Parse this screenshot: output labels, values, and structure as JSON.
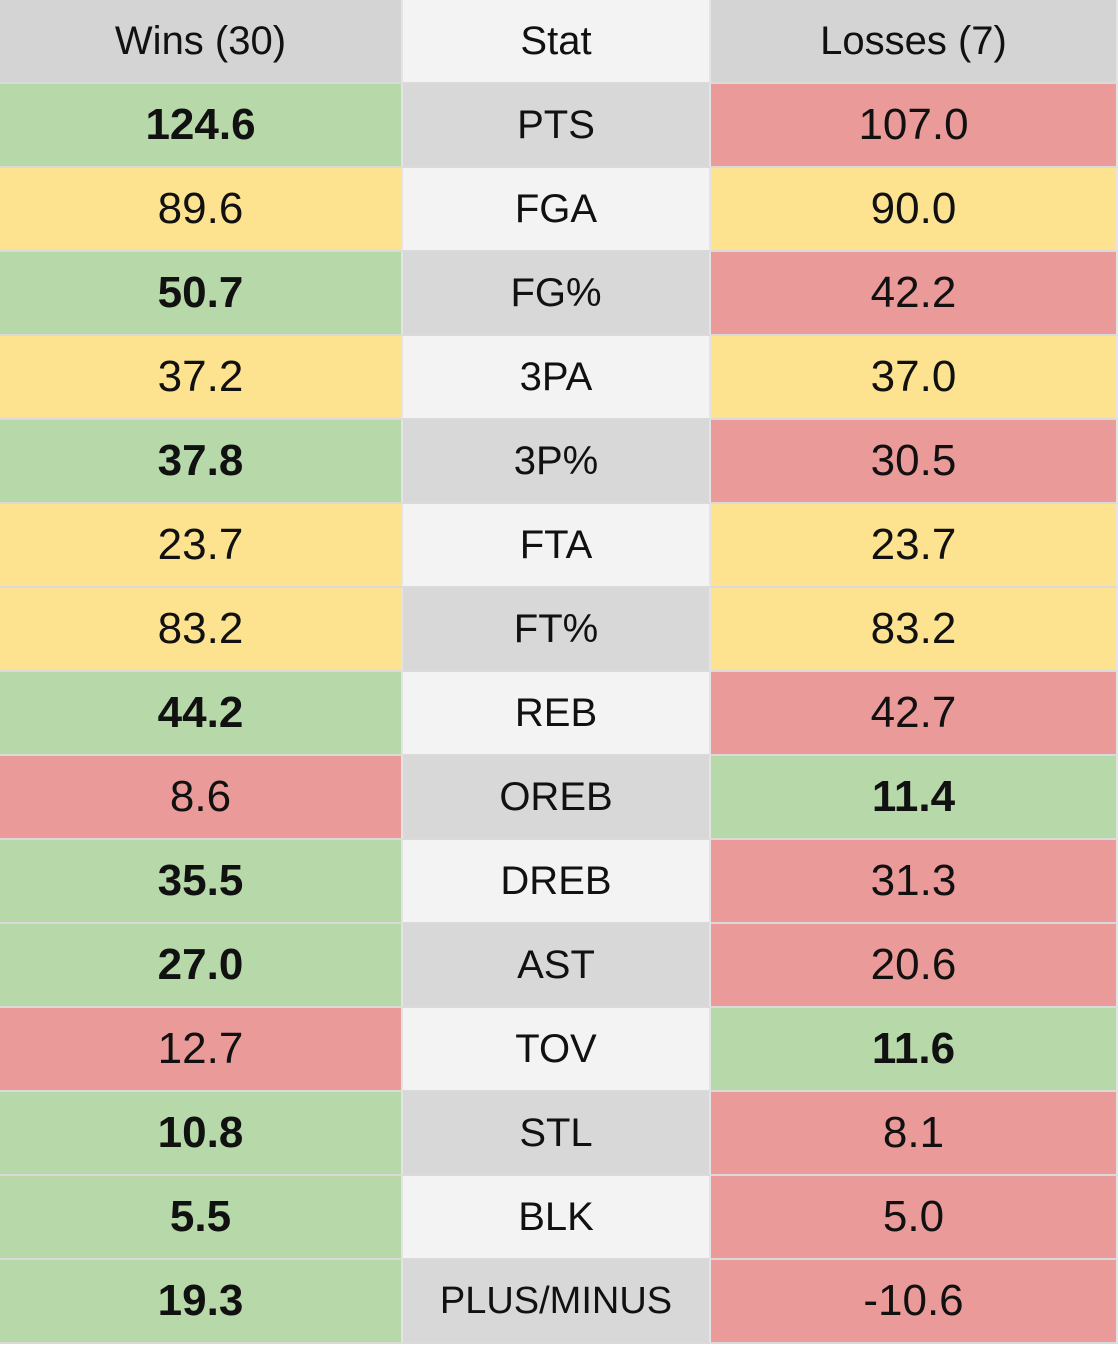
{
  "chart_data": {
    "type": "table",
    "columns": [
      "Wins (30)",
      "Stat",
      "Losses (7)"
    ],
    "colors": {
      "better": "#b7d8a8",
      "worse": "#ea9a99",
      "equal": "#fde38f"
    },
    "rows": [
      {
        "stat": "PTS",
        "wins": "124.6",
        "losses": "107.0",
        "wins_status": "good",
        "losses_status": "bad"
      },
      {
        "stat": "FGA",
        "wins": "89.6",
        "losses": "90.0",
        "wins_status": "even",
        "losses_status": "even"
      },
      {
        "stat": "FG%",
        "wins": "50.7",
        "losses": "42.2",
        "wins_status": "good",
        "losses_status": "bad"
      },
      {
        "stat": "3PA",
        "wins": "37.2",
        "losses": "37.0",
        "wins_status": "even",
        "losses_status": "even"
      },
      {
        "stat": "3P%",
        "wins": "37.8",
        "losses": "30.5",
        "wins_status": "good",
        "losses_status": "bad"
      },
      {
        "stat": "FTA",
        "wins": "23.7",
        "losses": "23.7",
        "wins_status": "even",
        "losses_status": "even"
      },
      {
        "stat": "FT%",
        "wins": "83.2",
        "losses": "83.2",
        "wins_status": "even",
        "losses_status": "even"
      },
      {
        "stat": "REB",
        "wins": "44.2",
        "losses": "42.7",
        "wins_status": "good",
        "losses_status": "bad"
      },
      {
        "stat": "OREB",
        "wins": "8.6",
        "losses": "11.4",
        "wins_status": "bad",
        "losses_status": "good"
      },
      {
        "stat": "DREB",
        "wins": "35.5",
        "losses": "31.3",
        "wins_status": "good",
        "losses_status": "bad"
      },
      {
        "stat": "AST",
        "wins": "27.0",
        "losses": "20.6",
        "wins_status": "good",
        "losses_status": "bad"
      },
      {
        "stat": "TOV",
        "wins": "12.7",
        "losses": "11.6",
        "wins_status": "bad",
        "losses_status": "good"
      },
      {
        "stat": "STL",
        "wins": "10.8",
        "losses": "8.1",
        "wins_status": "good",
        "losses_status": "bad"
      },
      {
        "stat": "BLK",
        "wins": "5.5",
        "losses": "5.0",
        "wins_status": "good",
        "losses_status": "bad"
      },
      {
        "stat": "PLUS/MINUS",
        "wins": "19.3",
        "losses": "-10.6",
        "wins_status": "good",
        "losses_status": "bad"
      }
    ]
  }
}
